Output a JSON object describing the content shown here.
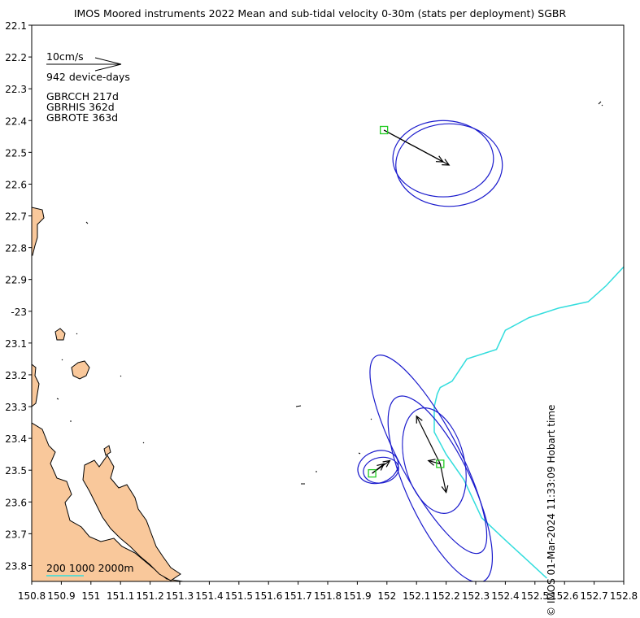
{
  "title": "IMOS Moored instruments 2022 Mean and sub-tidal velocity 0-30m (stats per deployment) SGBR",
  "credit": "© IMOS 01-Mar-2024 11:33:09 Hobart time",
  "legend": {
    "scale_label": "10cm/s",
    "device_days": "942 device-days",
    "deployments": [
      "GBRCCH 217d",
      "GBRHIS 362d",
      "GBROTE 363d"
    ],
    "bathymetry": "200 1000 2000m"
  },
  "colors": {
    "land": "#f9c89b",
    "ellipse": "#1a1acc",
    "isobath": "#33dddd",
    "mooring": "#22cc22",
    "arrow": "#000000"
  },
  "chart_data": {
    "type": "map",
    "xlim": [
      150.8,
      152.8
    ],
    "ylim": [
      -23.85,
      -22.1
    ],
    "x_ticks": [
      150.8,
      150.9,
      151,
      151.1,
      151.2,
      151.3,
      151.4,
      151.5,
      151.6,
      151.7,
      151.8,
      151.9,
      152,
      152.1,
      152.2,
      152.3,
      152.4,
      152.5,
      152.6,
      152.7,
      152.8
    ],
    "x_tick_labels": [
      "150.8",
      "150.9",
      "151",
      "151.1",
      "151.2",
      "151.3",
      "151.4",
      "151.5",
      "151.6",
      "151.7",
      "151.8",
      "151.9",
      "152",
      "152.1",
      "152.2",
      "152.3",
      "152.4",
      "152.5",
      "152.6",
      "152.7",
      "152.8"
    ],
    "y_ticks": [
      -22.1,
      -22.2,
      -22.3,
      -22.4,
      -22.5,
      -22.6,
      -22.7,
      -22.8,
      -22.9,
      -23,
      -23.1,
      -23.2,
      -23.3,
      -23.4,
      -23.5,
      -23.6,
      -23.7,
      -23.8
    ],
    "y_tick_labels": [
      "22.1",
      "22.2",
      "22.3",
      "22.4",
      "22.5",
      "22.6",
      "22.7",
      "22.8",
      "22.9",
      "-23",
      "23.1",
      "23.2",
      "23.3",
      "23.4",
      "23.5",
      "23.6",
      "23.7",
      "23.8"
    ],
    "moorings": [
      {
        "lon": 151.99,
        "lat": -22.43
      },
      {
        "lon": 151.95,
        "lat": -23.51
      },
      {
        "lon": 152.18,
        "lat": -23.48
      }
    ],
    "arrows": [
      {
        "lon0": 151.99,
        "lat0": -22.43,
        "lon1": 152.21,
        "lat1": -22.54
      },
      {
        "lon0": 151.99,
        "lat0": -22.43,
        "lon1": 152.19,
        "lat1": -22.53
      },
      {
        "lon0": 151.95,
        "lat0": -23.51,
        "lon1": 152.01,
        "lat1": -23.47
      },
      {
        "lon0": 151.95,
        "lat0": -23.51,
        "lon1": 151.99,
        "lat1": -23.48
      },
      {
        "lon0": 152.18,
        "lat0": -23.48,
        "lon1": 152.1,
        "lat1": -23.33
      },
      {
        "lon0": 152.18,
        "lat0": -23.48,
        "lon1": 152.2,
        "lat1": -23.57
      },
      {
        "lon0": 152.18,
        "lat0": -23.48,
        "lon1": 152.14,
        "lat1": -23.47
      }
    ],
    "ellipses": [
      {
        "lon": 152.19,
        "lat": -22.52,
        "a_lon": 0.17,
        "b_lat": 0.12,
        "angle": 0
      },
      {
        "lon": 152.21,
        "lat": -22.54,
        "a_lon": 0.18,
        "b_lat": 0.13,
        "angle": 0
      },
      {
        "lon": 152.14,
        "lat": -23.45,
        "a_lon": 0.1,
        "b_lat": 0.35,
        "angle": -28
      },
      {
        "lon": 152.18,
        "lat": -23.56,
        "a_lon": 0.11,
        "b_lat": 0.32,
        "angle": -25
      },
      {
        "lon": 152.16,
        "lat": -23.47,
        "a_lon": 0.1,
        "b_lat": 0.17,
        "angle": -15
      },
      {
        "lon": 151.97,
        "lat": -23.49,
        "a_lon": 0.07,
        "b_lat": 0.05,
        "angle": -20
      },
      {
        "lon": 151.98,
        "lat": -23.5,
        "a_lon": 0.06,
        "b_lat": 0.04,
        "angle": -10
      }
    ],
    "isobath_2000m": [
      [
        152.8,
        -22.86
      ],
      [
        152.74,
        -22.92
      ],
      [
        152.68,
        -22.97
      ],
      [
        152.58,
        -22.99
      ],
      [
        152.48,
        -23.02
      ],
      [
        152.44,
        -23.04
      ],
      [
        152.4,
        -23.06
      ],
      [
        152.37,
        -23.12
      ],
      [
        152.27,
        -23.15
      ],
      [
        152.22,
        -23.22
      ],
      [
        152.18,
        -23.24
      ],
      [
        152.17,
        -23.26
      ],
      [
        152.16,
        -23.3
      ],
      [
        152.16,
        -23.38
      ],
      [
        152.2,
        -23.45
      ],
      [
        152.26,
        -23.53
      ],
      [
        152.32,
        -23.65
      ],
      [
        152.4,
        -23.72
      ],
      [
        152.47,
        -23.78
      ],
      [
        152.54,
        -23.84
      ]
    ]
  }
}
